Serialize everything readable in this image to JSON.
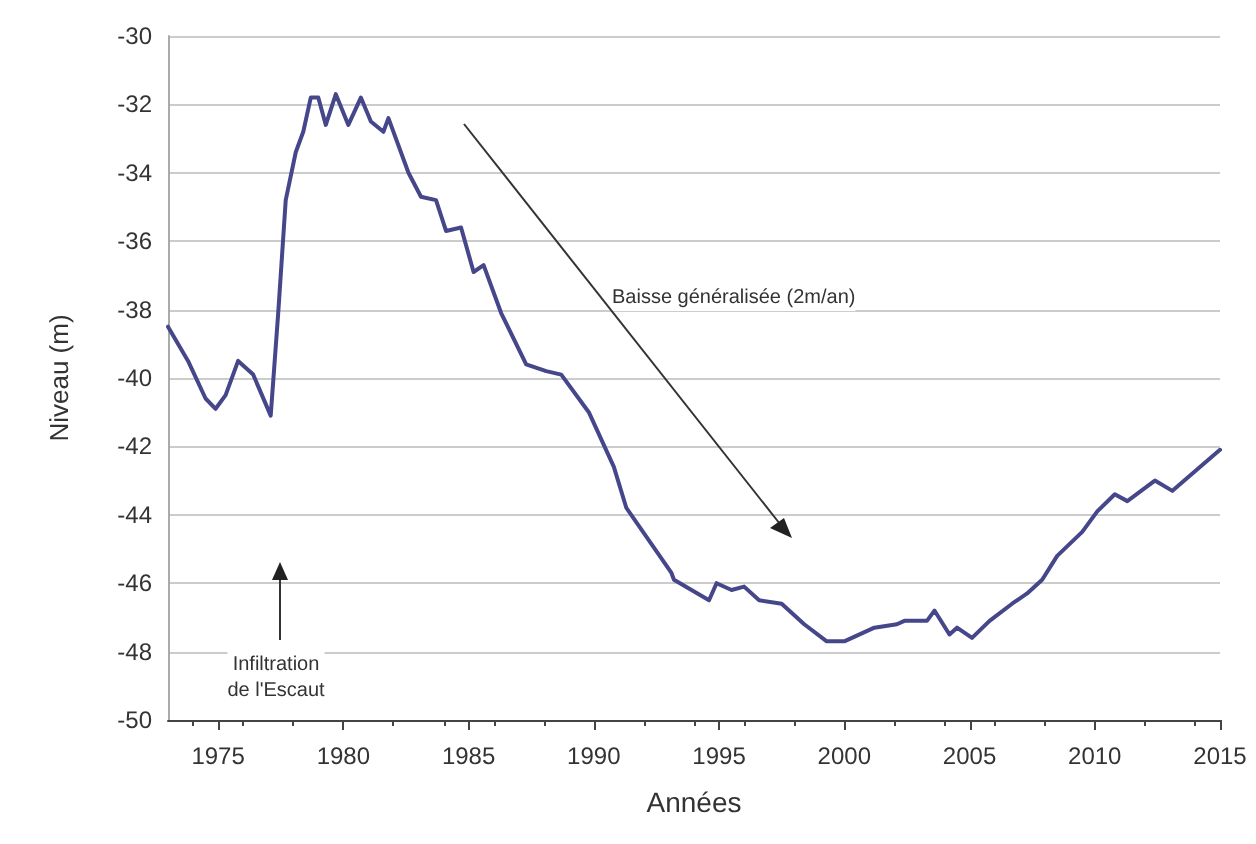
{
  "chart_data": {
    "type": "line",
    "xlabel": "Années",
    "ylabel": "Niveau (m)",
    "x": [
      1973.0,
      1973.8,
      1974.5,
      1974.9,
      1975.3,
      1975.8,
      1976.4,
      1977.1,
      1977.4,
      1977.7,
      1978.1,
      1978.4,
      1978.7,
      1979.0,
      1979.3,
      1979.7,
      1980.2,
      1980.7,
      1981.1,
      1981.6,
      1981.8,
      1982.6,
      1983.1,
      1983.7,
      1984.1,
      1984.7,
      1985.2,
      1985.6,
      1986.3,
      1987.3,
      1988.1,
      1988.7,
      1989.8,
      1990.8,
      1991.3,
      1993.1,
      1993.2,
      1994.6,
      1994.9,
      1995.5,
      1996.0,
      1996.6,
      1997.5,
      1998.4,
      1999.3,
      2000.0,
      2001.2,
      2002.1,
      2002.4,
      2003.3,
      2003.6,
      2004.2,
      2004.5,
      2005.1,
      2005.8,
      2006.7,
      2007.3,
      2007.9,
      2008.5,
      2009.5,
      2010.1,
      2010.8,
      2011.3,
      2012.4,
      2013.1,
      2014.2,
      2015.0
    ],
    "series": [
      {
        "color": "#46468a",
        "values": [
          -38.5,
          -39.5,
          -40.6,
          -40.9,
          -40.5,
          -39.5,
          -39.9,
          -41.1,
          -38.1,
          -34.8,
          -33.4,
          -32.8,
          -31.8,
          -31.8,
          -32.6,
          -31.7,
          -32.6,
          -31.8,
          -32.5,
          -32.8,
          -32.4,
          -34.0,
          -34.7,
          -34.8,
          -35.7,
          -35.6,
          -36.9,
          -36.7,
          -38.1,
          -39.6,
          -39.8,
          -39.9,
          -41.0,
          -42.6,
          -43.8,
          -45.7,
          -45.9,
          -46.5,
          -46.0,
          -46.2,
          -46.1,
          -46.5,
          -46.6,
          -47.2,
          -47.7,
          -47.7,
          -47.3,
          -47.2,
          -47.1,
          -47.1,
          -46.8,
          -47.5,
          -47.3,
          -47.6,
          -47.1,
          -46.6,
          -46.3,
          -45.9,
          -45.2,
          -44.5,
          -43.9,
          -43.4,
          -43.6,
          -43.0,
          -43.3,
          -42.6,
          -42.1
        ]
      }
    ],
    "xlim": [
      1973,
      2015
    ],
    "xticks": [
      1975,
      1980,
      1985,
      1990,
      1995,
      2000,
      2005,
      2010,
      2015
    ],
    "ylim": [
      -50,
      -30
    ],
    "yticks": [
      -50,
      -48,
      -46,
      -44,
      -42,
      -40,
      -38,
      -36,
      -34,
      -32,
      -30
    ],
    "grid": "y",
    "marker": "none",
    "line_style": "solid",
    "annotations": [
      "Infiltration\nde l'Escaut",
      "Baisse généralisée (2m/an)"
    ]
  }
}
